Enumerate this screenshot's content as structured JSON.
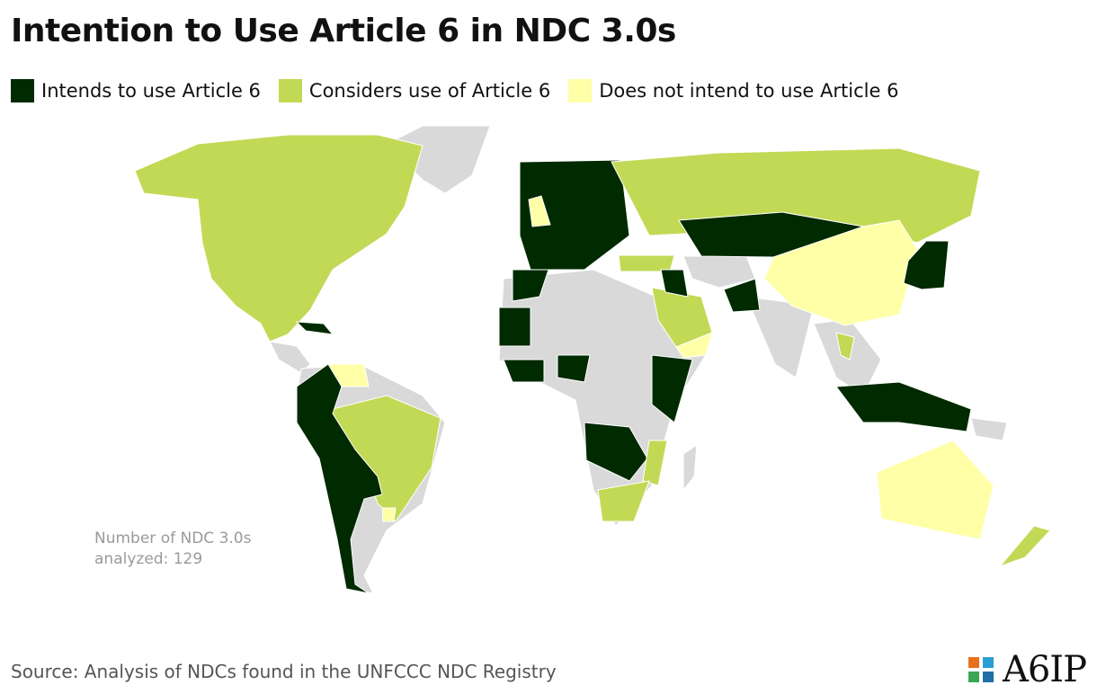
{
  "header": {
    "title": "Intention to Use Article 6 in NDC 3.0s"
  },
  "legend": [
    {
      "label": "Intends to use Article 6",
      "color": "#002a00"
    },
    {
      "label": "Considers use of Article 6",
      "color": "#c2d955"
    },
    {
      "label": "Does not intend to use Article 6",
      "color": "#ffffa8"
    }
  ],
  "note": "Number of NDC 3.0s analyzed: 129",
  "source": "Source: Analysis of NDCs found in the UNFCCC NDC Registry",
  "logo": "A6IP"
}
